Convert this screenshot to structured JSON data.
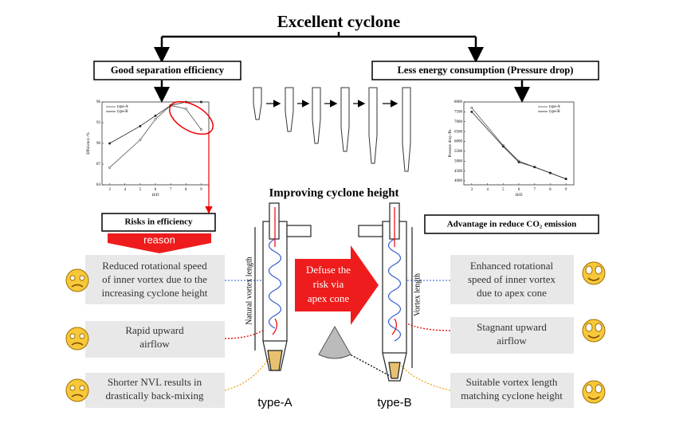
{
  "title": "Excellent cyclone",
  "left_header": "Good separation efficiency",
  "right_header": "Less energy consumption (Pressure drop)",
  "center_label": "Improving cyclone height",
  "risk_box": "Risks in efficiency",
  "reason": "reason",
  "advantage_box": "Advantage in reduce CO₂ emission",
  "defuse": [
    "Defuse the",
    "risk via",
    "apex cone"
  ],
  "left_notes": [
    [
      "Reduced rotational speed",
      "of inner vortex due to the",
      "increasing cyclone height"
    ],
    [
      "Rapid upward",
      "airflow"
    ],
    [
      "Shorter NVL results in",
      "drastically back-mixing"
    ]
  ],
  "right_notes": [
    [
      "Enhanced rotational",
      "speed of inner vortex",
      "due to  apex cone"
    ],
    [
      "Stagnant upward",
      "airflow"
    ],
    [
      "Suitable vortex length",
      "matching cyclone height"
    ]
  ],
  "type_a": "type-A",
  "type_b": "type-B",
  "natural_vortex": "Natural vortex length",
  "vortex_length": "Vortex length",
  "efficiency_chart": {
    "type": "line",
    "x_label": "H/D",
    "y_label": "Efficiency /%",
    "x": [
      3,
      5,
      6,
      7,
      8,
      9
    ],
    "xlim": [
      2.5,
      9.5
    ],
    "xticks": [
      3,
      4,
      5,
      6,
      7,
      8,
      9
    ],
    "ylim": [
      84,
      96
    ],
    "yticks": [
      84,
      87,
      90,
      93,
      96
    ],
    "series": [
      {
        "name": "type-A",
        "color": "#555555",
        "values": [
          86.5,
          90.5,
          93.5,
          95.5,
          95,
          92
        ]
      },
      {
        "name": "type-B",
        "color": "#222222",
        "values": [
          90,
          92.5,
          94,
          95.5,
          96,
          96
        ]
      }
    ]
  },
  "pressure_chart": {
    "type": "line",
    "x_label": "H/D",
    "y_label": "Pressure drop /Pa",
    "x": [
      3,
      5,
      6,
      7,
      8,
      9
    ],
    "xlim": [
      2.5,
      9.5
    ],
    "xticks": [
      3,
      4,
      5,
      6,
      7,
      8,
      9
    ],
    "ylim": [
      3800,
      8000
    ],
    "yticks": [
      4000,
      4500,
      5000,
      5500,
      6000,
      6500,
      7000,
      7500,
      8000
    ],
    "series": [
      {
        "name": "type-A",
        "color": "#555555",
        "values": [
          7700,
          5800,
          5000,
          4700,
          4400,
          4100
        ]
      },
      {
        "name": "type-B",
        "color": "#222222",
        "values": [
          7500,
          5750,
          4950,
          4700,
          4400,
          4100
        ]
      }
    ]
  }
}
